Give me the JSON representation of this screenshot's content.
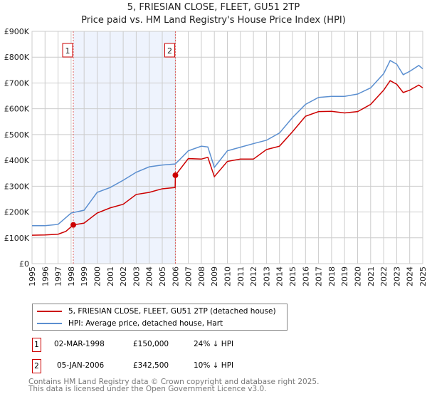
{
  "title": "5, FRIESIAN CLOSE, FLEET, GU51 2TP",
  "subtitle": "Price paid vs. HM Land Registry's House Price Index (HPI)",
  "chart_data": {
    "type": "line",
    "title": "5, FRIESIAN CLOSE, FLEET, GU51 2TP",
    "subtitle": "Price paid vs. HM Land Registry's House Price Index (HPI)",
    "xlim": [
      1995,
      2025
    ],
    "ylim": [
      0,
      900000
    ],
    "grid": true,
    "x_ticks": [
      "1995",
      "1996",
      "1997",
      "1998",
      "1999",
      "2000",
      "2001",
      "2002",
      "2003",
      "2004",
      "2005",
      "2006",
      "2007",
      "2008",
      "2009",
      "2010",
      "2011",
      "2012",
      "2013",
      "2014",
      "2015",
      "2016",
      "2017",
      "2018",
      "2019",
      "2020",
      "2021",
      "2022",
      "2023",
      "2024",
      "2025"
    ],
    "y_ticks": [
      {
        "v": 0,
        "label": "£0"
      },
      {
        "v": 100000,
        "label": "£100K"
      },
      {
        "v": 200000,
        "label": "£200K"
      },
      {
        "v": 300000,
        "label": "£300K"
      },
      {
        "v": 400000,
        "label": "£400K"
      },
      {
        "v": 500000,
        "label": "£500K"
      },
      {
        "v": 600000,
        "label": "£600K"
      },
      {
        "v": 700000,
        "label": "£700K"
      },
      {
        "v": 800000,
        "label": "£800K"
      },
      {
        "v": 900000,
        "label": "£900K"
      }
    ],
    "shaded_range": [
      1998.17,
      2006.01
    ],
    "series": [
      {
        "name": "5, FRIESIAN CLOSE, FLEET, GU51 2TP (detached house)",
        "color": "#cc0000",
        "x": [
          1995,
          1996,
          1997,
          1997.6,
          1998.17,
          1999,
          2000,
          2001,
          2002,
          2003,
          2004,
          2005,
          2005.99,
          2006.01,
          2007,
          2008,
          2008.5,
          2009,
          2010,
          2011,
          2012,
          2013,
          2014,
          2015,
          2016,
          2017,
          2018,
          2019,
          2020,
          2021,
          2022,
          2022.5,
          2023,
          2023.5,
          2024,
          2024.7,
          2025
        ],
        "y": [
          110000,
          111000,
          114000,
          125000,
          150000,
          157000,
          196000,
          216000,
          230000,
          268000,
          276000,
          290000,
          295000,
          342500,
          407000,
          405000,
          412000,
          337000,
          396000,
          405000,
          405000,
          442000,
          455000,
          511000,
          571000,
          589000,
          590000,
          584000,
          589000,
          617000,
          672000,
          709000,
          695000,
          663000,
          672000,
          692000,
          681000
        ]
      },
      {
        "name": "HPI: Average price, detached house, Hart",
        "color": "#5b8fd0",
        "x": [
          1995,
          1996,
          1997,
          1998,
          1999,
          2000,
          2001,
          2002,
          2003,
          2004,
          2005,
          2006,
          2007,
          2008,
          2008.5,
          2009,
          2010,
          2011,
          2012,
          2013,
          2014,
          2015,
          2016,
          2017,
          2018,
          2019,
          2020,
          2021,
          2022,
          2022.5,
          2023,
          2023.5,
          2024,
          2024.7,
          2025
        ],
        "y": [
          147000,
          147000,
          152000,
          196000,
          207000,
          276000,
          295000,
          323000,
          354000,
          375000,
          382000,
          386000,
          437000,
          455000,
          452000,
          373000,
          437000,
          451000,
          465000,
          478000,
          506000,
          566000,
          617000,
          644000,
          648000,
          648000,
          657000,
          681000,
          736000,
          787000,
          773000,
          732000,
          745000,
          768000,
          755000
        ]
      }
    ],
    "annotations": [
      {
        "label": "1",
        "x": 1998.17,
        "y": 150000
      },
      {
        "label": "2",
        "x": 2006.01,
        "y": 342500
      }
    ]
  },
  "legend": [
    {
      "label": "5, FRIESIAN CLOSE, FLEET, GU51 2TP (detached house)",
      "color": "#cc0000"
    },
    {
      "label": "HPI: Average price, detached house, Hart",
      "color": "#5b8fd0"
    }
  ],
  "sales": [
    {
      "num": "1",
      "date": "02-MAR-1998",
      "price": "£150,000",
      "hpi": "24% ↓ HPI"
    },
    {
      "num": "2",
      "date": "05-JAN-2006",
      "price": "£342,500",
      "hpi": "10% ↓ HPI"
    }
  ],
  "footer": [
    "Contains HM Land Registry data © Crown copyright and database right 2025.",
    "This data is licensed under the Open Government Licence v3.0."
  ]
}
